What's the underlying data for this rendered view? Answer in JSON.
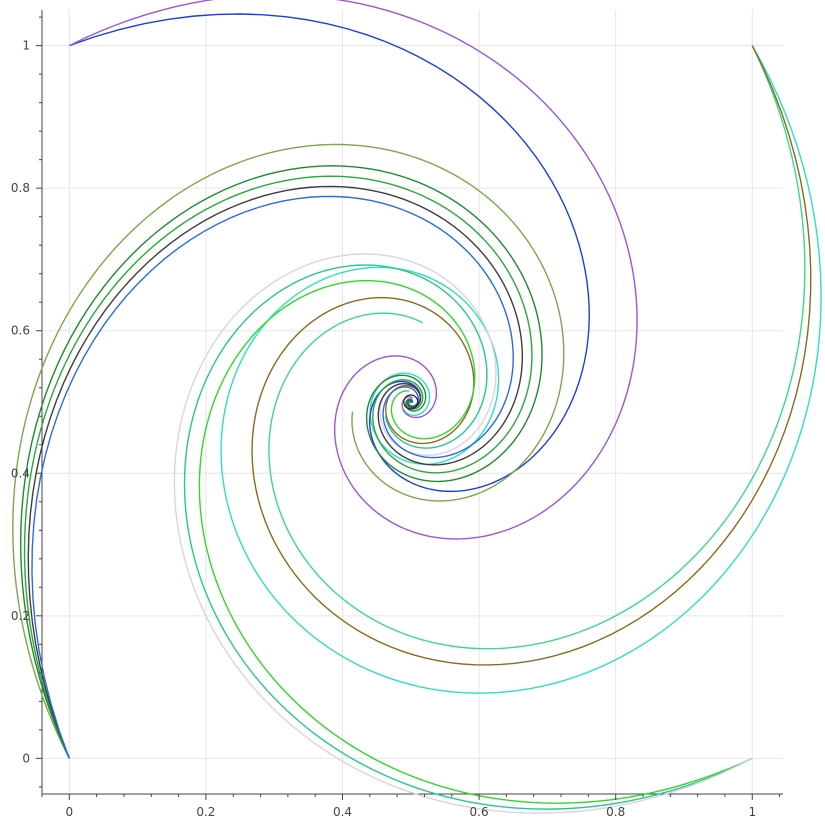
{
  "chart_data": {
    "type": "line",
    "title": "",
    "xlabel": "",
    "ylabel": "",
    "xlim": [
      -0.04,
      1.045
    ],
    "ylim": [
      -0.05,
      1.05
    ],
    "grid": true,
    "x_ticks": [
      0,
      0.2,
      0.4,
      0.6,
      0.8,
      1
    ],
    "x_tick_labels": [
      "0",
      "0.2",
      "0.4",
      "0.6",
      "0.8",
      "1"
    ],
    "y_ticks": [
      0,
      0.2,
      0.4,
      0.6,
      0.8,
      1
    ],
    "y_tick_labels": [
      "0",
      "0.2",
      "0.4",
      "0.6",
      "0.8",
      "1"
    ],
    "description": "Curves converging in spirals toward center point (0.5, 0.5)",
    "center": [
      0.5,
      0.5
    ],
    "series": [
      {
        "color": "#3cd88c",
        "from": "top-right",
        "start": [
          1,
          1
        ],
        "ratio": 0.6,
        "wind": 0.9
      },
      {
        "color": "#2de0c0",
        "from": "top-right",
        "start": [
          1,
          1
        ],
        "ratio": 0.68,
        "wind": 2.5
      },
      {
        "color": "#8b6a1f",
        "from": "top-right",
        "start": [
          1,
          1
        ],
        "ratio": 0.63,
        "wind": 3.2
      },
      {
        "color": "#28c88a",
        "from": "bottom-right",
        "start": [
          1,
          0
        ],
        "ratio": 0.58,
        "wind": 1.3
      },
      {
        "color": "#32d62e",
        "from": "bottom-right",
        "start": [
          1,
          0
        ],
        "ratio": 0.55,
        "wind": 1.6
      },
      {
        "color": "#ddd0ea",
        "from": "bottom-right",
        "start": [
          1,
          0
        ],
        "ratio": 0.6,
        "wind": 2.4
      },
      {
        "color": "#1a3fe0",
        "from": "top-left",
        "start": [
          0,
          1
        ],
        "ratio": 0.48,
        "wind": 3.4
      },
      {
        "color": "#9a55dd",
        "from": "top-left",
        "start": [
          0,
          1
        ],
        "ratio": 0.58,
        "wind": 2.2
      },
      {
        "color": "#7ba84a",
        "from": "bottom-left",
        "start": [
          0,
          0
        ],
        "ratio": 0.62,
        "wind": 1.1
      },
      {
        "color": "#2aa83a",
        "from": "bottom-left",
        "start": [
          0,
          0
        ],
        "ratio": 0.56,
        "wind": 2.3
      },
      {
        "color": "#3d3d3d",
        "from": "bottom-left",
        "start": [
          0,
          0
        ],
        "ratio": 0.54,
        "wind": 3.1
      },
      {
        "color": "#1e8a2e",
        "from": "bottom-left",
        "start": [
          0,
          0
        ],
        "ratio": 0.58,
        "wind": 2.7
      },
      {
        "color": "#2a6ae8",
        "from": "bottom-left",
        "start": [
          0,
          0
        ],
        "ratio": 0.52,
        "wind": 3.6
      }
    ]
  }
}
